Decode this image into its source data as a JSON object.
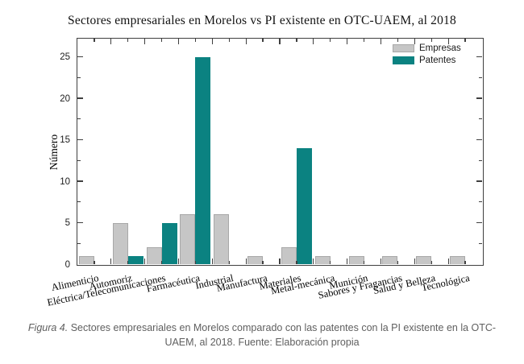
{
  "chart_data": {
    "type": "bar",
    "title": "Sectores empresariales en Morelos vs PI existente en OTC-UAEM, al 2018",
    "ylabel": "Número",
    "xlabel": "",
    "ylim": [
      0,
      27.2
    ],
    "yticks": [
      0,
      5,
      10,
      15,
      20,
      25
    ],
    "yminor_step": 2.5,
    "grid": false,
    "legend_position": "top-right",
    "categories": [
      "Alimenticio",
      "Automoriz",
      "Eléctrica/Telecomunicaciones",
      "Farmacéutica",
      "Industrial",
      "Manufactura",
      "Materiales",
      "Metal-mecánica",
      "Munición",
      "Sabores y Fragancias",
      "Salud y Belleza",
      "Tecnológica"
    ],
    "series": [
      {
        "name": "Empresas",
        "color": "#c6c6c6",
        "border": "#a8a8a8",
        "values": [
          1,
          5,
          2,
          6,
          6,
          1,
          2,
          1,
          1,
          1,
          1,
          1
        ]
      },
      {
        "name": "Patentes",
        "color": "#0b8281",
        "border": "#0b8281",
        "values": [
          0,
          1,
          5,
          25,
          0,
          0,
          14,
          0,
          0,
          0,
          0,
          0
        ]
      }
    ]
  },
  "caption": {
    "figure_label": "Figura 4.",
    "line1_rest": " Sectores empresariales en Morelos comparado con las patentes con la PI existente en la OTC-",
    "line2": "UAEM, al 2018. Fuente: Elaboración propia"
  },
  "colors": {
    "spine": "#3f3f3f",
    "caption_text": "#5f5f5f"
  }
}
